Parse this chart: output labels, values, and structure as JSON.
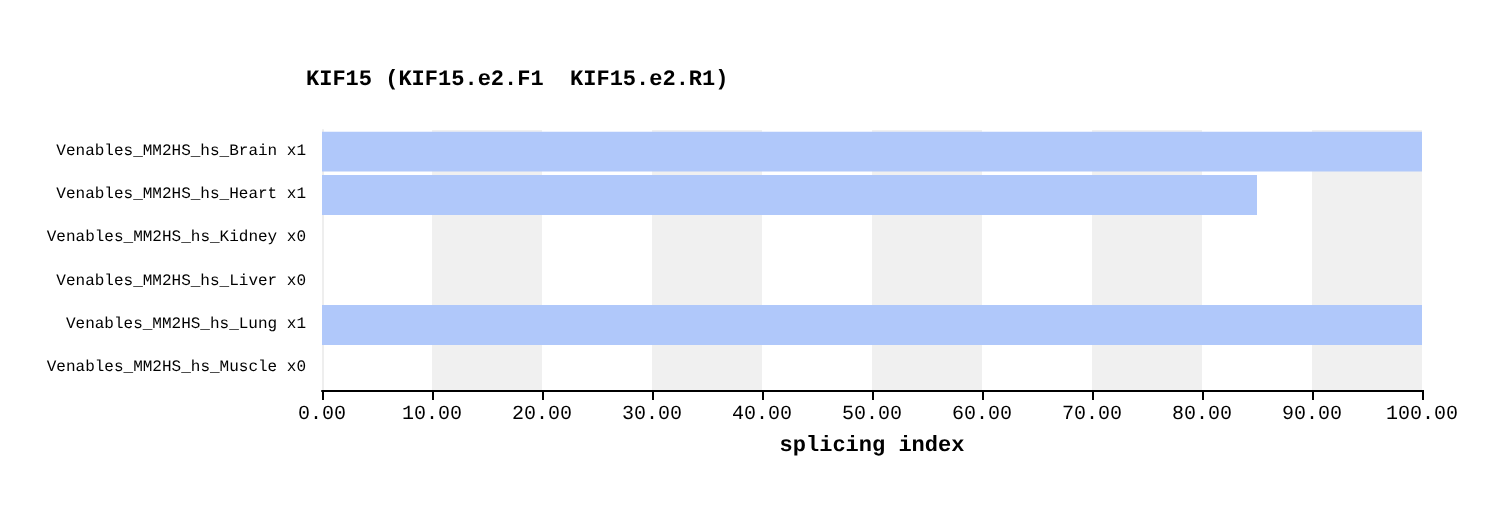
{
  "chart_data": {
    "type": "bar",
    "orientation": "horizontal",
    "title": "KIF15 (KIF15.e2.F1  KIF15.e2.R1)",
    "xlabel": "splicing index",
    "categories": [
      "Venables_MM2HS_hs_Brain x1",
      "Venables_MM2HS_hs_Heart x1",
      "Venables_MM2HS_hs_Kidney x0",
      "Venables_MM2HS_hs_Liver x0",
      "Venables_MM2HS_hs_Lung x1",
      "Venables_MM2HS_hs_Muscle x0"
    ],
    "values": [
      100,
      85,
      null,
      null,
      100,
      null
    ],
    "color": "#b0c8fa",
    "xlim": [
      0,
      100
    ],
    "xticks": [
      {
        "value": 0,
        "label": "0.00"
      },
      {
        "value": 10,
        "label": "10.00"
      },
      {
        "value": 20,
        "label": "20.00"
      },
      {
        "value": 30,
        "label": "30.00"
      },
      {
        "value": 40,
        "label": "40.00"
      },
      {
        "value": 50,
        "label": "50.00"
      },
      {
        "value": 60,
        "label": "60.00"
      },
      {
        "value": 70,
        "label": "70.00"
      },
      {
        "value": 80,
        "label": "80.00"
      },
      {
        "value": 90,
        "label": "90.00"
      },
      {
        "value": 100,
        "label": "100.00"
      }
    ],
    "data_labels": false
  }
}
